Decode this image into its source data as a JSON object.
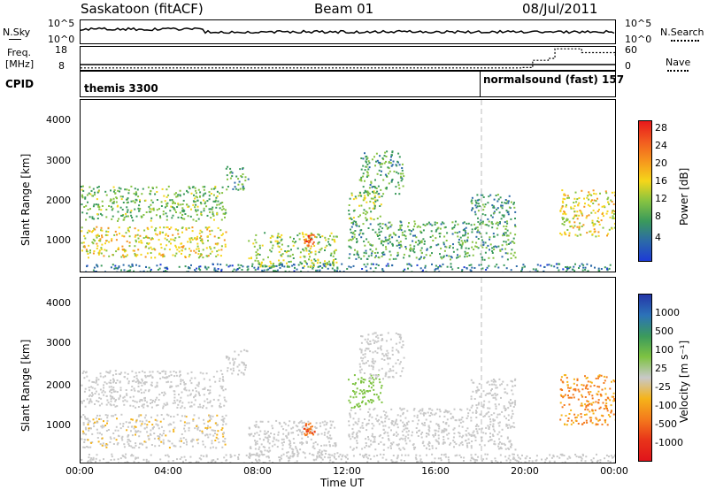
{
  "header": {
    "station": "Saskatoon (fitACF)",
    "beam": "Beam 01",
    "date": "08/Jul/2011"
  },
  "sky_panel": {
    "left_label": "N.Sky",
    "right_label": "N.Search",
    "left_ticks": [
      "10^5",
      "10^0"
    ],
    "right_ticks": [
      "10^5",
      "10^0"
    ]
  },
  "freq_panel": {
    "left_label_1": "Freq.",
    "left_label_2": "[MHz]",
    "right_label": "Nave",
    "left_ticks": [
      "18",
      "8"
    ],
    "right_ticks": [
      "60",
      "0"
    ]
  },
  "cpid_panel": {
    "label": "CPID",
    "mode1": "themis 3300",
    "mode2": "normalsound (fast) 157"
  },
  "power_panel": {
    "ylabel": "Slant Range [km]",
    "yticks": [
      "4000",
      "3000",
      "2000",
      "1000"
    ],
    "colorbar_title": "Power [dB]",
    "colorbar_labels": [
      "28",
      "24",
      "20",
      "16",
      "12",
      "8",
      "4"
    ],
    "colorbar_colors": [
      "#e8191b",
      "#f15a20",
      "#f6961d",
      "#f5d61a",
      "#86c341",
      "#3a9a5b",
      "#2c6aa8",
      "#1d3bd6"
    ]
  },
  "velocity_panel": {
    "ylabel": "Slant Range [km]",
    "yticks": [
      "4000",
      "3000",
      "2000",
      "1000"
    ],
    "colorbar_title": "Velocity [m s⁻¹]",
    "colorbar_labels": [
      "1000",
      "500",
      "100",
      "25",
      "-25",
      "-100",
      "-500",
      "-1000"
    ],
    "colorbar_colors": [
      "#2436a8",
      "#2c73b8",
      "#3b9a5c",
      "#7ec342",
      "#c8c8c8",
      "#f5b41a",
      "#f47a1c",
      "#e8341a",
      "#e0141b"
    ]
  },
  "xaxis": {
    "title": "Time UT",
    "ticks": [
      "00:00",
      "04:00",
      "08:00",
      "12:00",
      "16:00",
      "20:00",
      "00:00"
    ]
  },
  "chart_data": {
    "type": "heatmap",
    "title": "Saskatoon (fitACF) Beam 01 08/Jul/2011",
    "xlabel": "Time UT",
    "ylabel": "Slant Range [km]",
    "xlim": [
      "00:00",
      "24:00"
    ],
    "ylim": [
      180,
      4600
    ],
    "mode_change_time": "18:00",
    "power_colorbar_range_dB": [
      0,
      32
    ],
    "velocity_colorbar_range_ms": [
      -1000,
      1000
    ],
    "echo_regions": [
      {
        "t_start": 0.0,
        "t_end": 6.5,
        "range_min": 1500,
        "range_max": 2400,
        "power_dB": 12,
        "velocity": 10
      },
      {
        "t_start": 0.0,
        "t_end": 6.5,
        "range_min": 550,
        "range_max": 1350,
        "power_dB": 18,
        "velocity": -80
      },
      {
        "t_start": 6.5,
        "t_end": 7.5,
        "range_min": 2300,
        "range_max": 2900,
        "power_dB": 10,
        "velocity": -30
      },
      {
        "t_start": 7.5,
        "t_end": 11.5,
        "range_min": 300,
        "range_max": 1200,
        "power_dB": 14,
        "velocity": 0
      },
      {
        "t_start": 10.0,
        "t_end": 10.5,
        "range_min": 850,
        "range_max": 1150,
        "power_dB": 26,
        "velocity": -600
      },
      {
        "t_start": 12.0,
        "t_end": 13.5,
        "range_min": 1500,
        "range_max": 2300,
        "power_dB": 14,
        "velocity": 200
      },
      {
        "t_start": 12.5,
        "t_end": 14.5,
        "range_min": 2200,
        "range_max": 3300,
        "power_dB": 10,
        "velocity": -50
      },
      {
        "t_start": 12.0,
        "t_end": 19.5,
        "range_min": 500,
        "range_max": 1500,
        "power_dB": 10,
        "velocity": 0
      },
      {
        "t_start": 17.5,
        "t_end": 19.5,
        "range_min": 1500,
        "range_max": 2200,
        "power_dB": 8,
        "velocity": 0
      },
      {
        "t_start": 21.5,
        "t_end": 24.0,
        "range_min": 1100,
        "range_max": 2300,
        "power_dB": 18,
        "velocity": -400
      },
      {
        "t_start": 0.0,
        "t_end": 24.0,
        "range_min": 180,
        "range_max": 400,
        "power_dB": 6,
        "velocity": 0
      }
    ],
    "freq_MHz_series": [
      {
        "t": 0,
        "value": 10.3
      },
      {
        "t": 18,
        "value": 10.3
      },
      {
        "t": 24,
        "value": 10.3
      }
    ],
    "nave_series": [
      {
        "t": 0,
        "value": 5
      },
      {
        "t": 18,
        "value": 5
      },
      {
        "t": 19.8,
        "value": 6
      },
      {
        "t": 20.3,
        "value": 25
      },
      {
        "t": 21.0,
        "value": 30
      },
      {
        "t": 21.3,
        "value": 55
      },
      {
        "t": 22.5,
        "value": 45
      },
      {
        "t": 24,
        "value": 38
      }
    ]
  }
}
